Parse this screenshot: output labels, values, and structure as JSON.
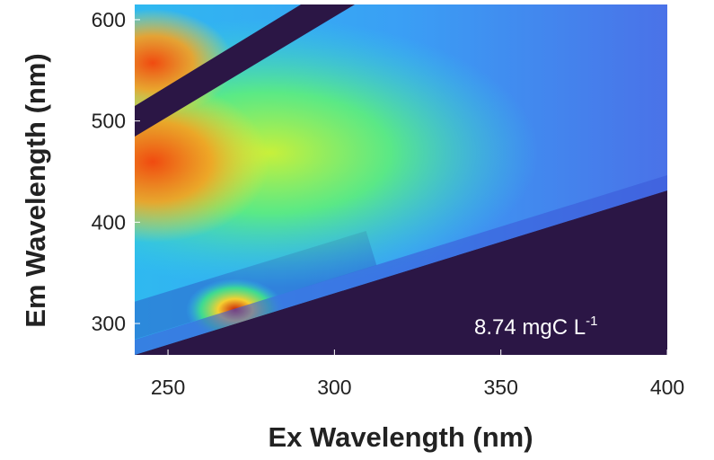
{
  "chart_data": {
    "type": "heatmap",
    "xlabel": "Ex Wavelength (nm)",
    "ylabel": "Em Wavelength (nm)",
    "xlim": [
      240,
      400
    ],
    "xticks": [
      250,
      300,
      350,
      400
    ],
    "ylim": [
      269,
      615
    ],
    "yticks": [
      300,
      400,
      500,
      600
    ],
    "annotation": {
      "text": "8.74 mgC L",
      "superscript": "-1"
    }
  }
}
